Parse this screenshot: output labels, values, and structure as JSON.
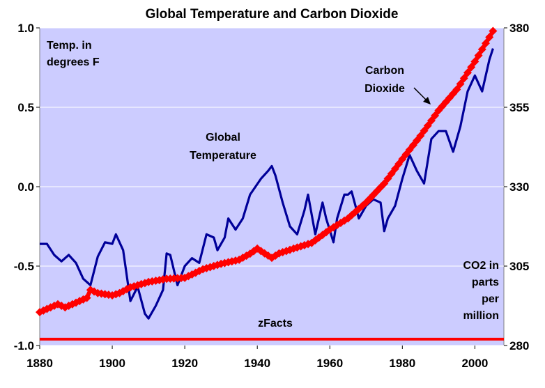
{
  "chart_data": {
    "type": "line",
    "title": "Global Temperature and Carbon Dioxide",
    "xlim": [
      1880,
      2008
    ],
    "x_ticks": [
      "1880",
      "1900",
      "1920",
      "1940",
      "1960",
      "1980",
      "2000"
    ],
    "y_left": {
      "lim": [
        -1.0,
        1.0
      ],
      "ticks": [
        "1.0",
        "0.5",
        "0.0",
        "-0.5",
        "-1.0"
      ]
    },
    "y_right": {
      "lim": [
        280,
        380
      ],
      "ticks": [
        "380",
        "355",
        "330",
        "305",
        "280"
      ]
    },
    "grid": true,
    "plot_background": "#ccccff",
    "annotations": {
      "left_axis_label": [
        "Temp. in",
        "degrees F"
      ],
      "right_axis_label": [
        "CO2 in",
        "parts",
        "per",
        "million"
      ],
      "temperature_label": [
        "Global",
        "Temperature"
      ],
      "co2_label": [
        "Carbon",
        "Dioxide"
      ],
      "watermark": "zFacts"
    },
    "series": [
      {
        "label": "Global Temperature",
        "axis": "left",
        "color": "#000099",
        "x": [
          1880,
          1882,
          1884,
          1886,
          1888,
          1890,
          1892,
          1894,
          1896,
          1898,
          1900,
          1901,
          1903,
          1905,
          1907,
          1909,
          1910,
          1912,
          1914,
          1915,
          1916,
          1918,
          1920,
          1922,
          1924,
          1926,
          1928,
          1929,
          1931,
          1932,
          1934,
          1936,
          1938,
          1941,
          1943,
          1944,
          1945,
          1947,
          1949,
          1951,
          1953,
          1954,
          1956,
          1958,
          1959,
          1961,
          1962,
          1964,
          1965,
          1966,
          1968,
          1970,
          1972,
          1974,
          1975,
          1976,
          1978,
          1980,
          1982,
          1984,
          1986,
          1988,
          1990,
          1992,
          1994,
          1996,
          1998,
          2000,
          2002,
          2004,
          2005
        ],
        "values": [
          -0.36,
          -0.36,
          -0.43,
          -0.47,
          -0.43,
          -0.48,
          -0.58,
          -0.62,
          -0.44,
          -0.35,
          -0.36,
          -0.3,
          -0.4,
          -0.72,
          -0.63,
          -0.8,
          -0.83,
          -0.75,
          -0.65,
          -0.42,
          -0.43,
          -0.62,
          -0.5,
          -0.45,
          -0.48,
          -0.3,
          -0.32,
          -0.4,
          -0.32,
          -0.2,
          -0.27,
          -0.2,
          -0.05,
          0.05,
          0.1,
          0.13,
          0.07,
          -0.1,
          -0.25,
          -0.3,
          -0.15,
          -0.05,
          -0.3,
          -0.1,
          -0.2,
          -0.35,
          -0.2,
          -0.05,
          -0.05,
          -0.03,
          -0.2,
          -0.12,
          -0.08,
          -0.1,
          -0.28,
          -0.2,
          -0.12,
          0.05,
          0.2,
          0.1,
          0.02,
          0.3,
          0.35,
          0.35,
          0.22,
          0.38,
          0.6,
          0.7,
          0.6,
          0.8,
          0.87
        ]
      },
      {
        "label": "Carbon Dioxide",
        "axis": "right",
        "color": "#ff0000",
        "x": [
          1880,
          1885,
          1887,
          1890,
          1893,
          1894,
          1896,
          1900,
          1902,
          1905,
          1910,
          1915,
          1920,
          1925,
          1930,
          1935,
          1938,
          1940,
          1942,
          1944,
          1946,
          1950,
          1955,
          1960,
          1965,
          1970,
          1975,
          1980,
          1985,
          1990,
          1995,
          2000,
          2005
        ],
        "values": [
          290.5,
          293,
          292,
          293.5,
          295,
          297.5,
          296.5,
          295.8,
          296.5,
          298.3,
          300,
          301,
          301.3,
          304,
          305.7,
          307,
          308.9,
          310.5,
          309,
          307.6,
          309,
          310.5,
          312.3,
          316.5,
          320,
          325,
          331,
          338.7,
          346,
          354,
          360.6,
          369.4,
          379
        ]
      },
      {
        "label": "zFacts baseline",
        "axis": "left",
        "color": "#ff0000",
        "x": [
          1880,
          2008
        ],
        "values": [
          -0.96,
          -0.96
        ]
      }
    ]
  }
}
